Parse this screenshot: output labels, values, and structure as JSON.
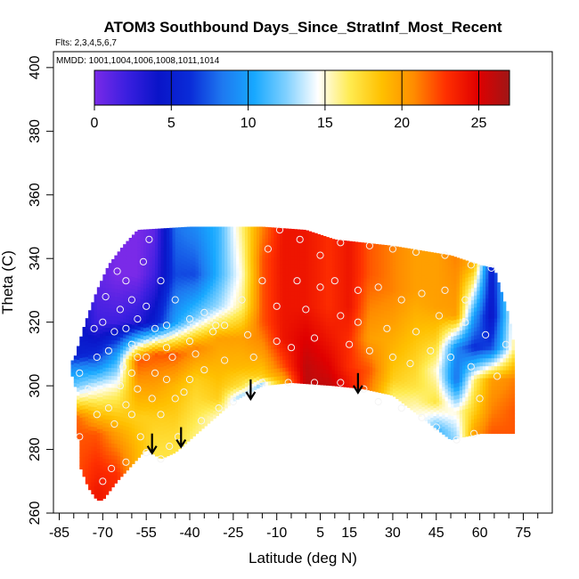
{
  "chart_data": {
    "type": "heatmap",
    "title": "ATOM3 Southbound Days_Since_StratInf_Most_Recent",
    "flights_note": "Flts: 2,3,4,5,6,7",
    "dates_note": "MMDD: 1001,1004,1006,1008,1011,1014",
    "xlabel": "Latitude (deg N)",
    "ylabel": "Theta (C)",
    "xlim": [
      -87,
      85
    ],
    "ylim": [
      260,
      405
    ],
    "x_ticks": [
      -85,
      -70,
      -55,
      -40,
      -25,
      -10,
      5,
      15,
      30,
      45,
      60,
      75
    ],
    "x_minor_ticks": [
      -80,
      -75,
      -65,
      -60,
      -50,
      -45,
      -35,
      -30,
      -20,
      -15,
      -5,
      0,
      10,
      20,
      25,
      35,
      40,
      50,
      55,
      65,
      70,
      80
    ],
    "y_ticks": [
      260,
      280,
      300,
      320,
      340,
      360,
      380,
      400
    ],
    "colorbar": {
      "min": 0,
      "max": 27,
      "ticks": [
        0,
        5,
        10,
        15,
        20,
        25
      ],
      "colors": [
        "#7a2ae8",
        "#3b1fe0",
        "#0a14c8",
        "#0a2cd8",
        "#1e78f0",
        "#17a8ff",
        "#7fd0ff",
        "#ffffff",
        "#ffeb50",
        "#ffc000",
        "#ff8c00",
        "#ff3000",
        "#e00000",
        "#a01616"
      ]
    },
    "domain": {
      "upper_boundary": [
        [
          -80,
          308
        ],
        [
          -76,
          320
        ],
        [
          -72,
          330
        ],
        [
          -68,
          338
        ],
        [
          -63,
          344
        ],
        [
          -58,
          349
        ],
        [
          -40,
          350
        ],
        [
          -15,
          350
        ],
        [
          0,
          349
        ],
        [
          10,
          346
        ],
        [
          30,
          344
        ],
        [
          50,
          341
        ],
        [
          60,
          338
        ],
        [
          65,
          337
        ],
        [
          70,
          322
        ],
        [
          72,
          312
        ],
        [
          72,
          300
        ],
        [
          72,
          285
        ]
      ],
      "lower_boundary": [
        [
          72,
          285
        ],
        [
          60,
          285
        ],
        [
          50,
          283
        ],
        [
          40,
          290
        ],
        [
          30,
          297
        ],
        [
          20,
          299
        ],
        [
          10,
          300
        ],
        [
          -5,
          301
        ],
        [
          -15,
          300
        ],
        [
          -25,
          295
        ],
        [
          -35,
          287
        ],
        [
          -45,
          279
        ],
        [
          -50,
          277
        ],
        [
          -55,
          280
        ],
        [
          -60,
          275
        ],
        [
          -65,
          270
        ],
        [
          -70,
          264
        ],
        [
          -72,
          264
        ],
        [
          -75,
          268
        ],
        [
          -78,
          275
        ],
        [
          -81,
          288
        ],
        [
          -81,
          298
        ],
        [
          -80,
          308
        ]
      ]
    },
    "field_columns": [
      {
        "lat": -80,
        "theta": [
          290,
          300,
          306,
          310
        ],
        "value": [
          22,
          12,
          9,
          5
        ]
      },
      {
        "lat": -72,
        "theta": [
          266,
          285,
          300,
          310,
          320,
          332
        ],
        "value": [
          24,
          22,
          14,
          6,
          2,
          1
        ]
      },
      {
        "lat": -65,
        "theta": [
          272,
          285,
          298,
          310,
          320,
          335,
          345
        ],
        "value": [
          23,
          20,
          16,
          10,
          2,
          0,
          0
        ]
      },
      {
        "lat": -58,
        "theta": [
          280,
          290,
          300,
          308,
          320,
          335,
          348
        ],
        "value": [
          19,
          18,
          20,
          22,
          3,
          0,
          0
        ]
      },
      {
        "lat": -52,
        "theta": [
          279,
          290,
          300,
          310,
          320,
          335,
          348
        ],
        "value": [
          17,
          18,
          20,
          22,
          5,
          2,
          1
        ]
      },
      {
        "lat": -45,
        "theta": [
          280,
          290,
          300,
          310,
          320,
          335,
          349
        ],
        "value": [
          17,
          18,
          19,
          22,
          10,
          7,
          8
        ]
      },
      {
        "lat": -38,
        "theta": [
          284,
          292,
          302,
          312,
          322,
          335,
          349
        ],
        "value": [
          16,
          17,
          18,
          21,
          12,
          7,
          9
        ]
      },
      {
        "lat": -30,
        "theta": [
          290,
          296,
          305,
          315,
          325,
          335,
          349
        ],
        "value": [
          15,
          18,
          19,
          20,
          13,
          11,
          11
        ]
      },
      {
        "lat": -22,
        "theta": [
          296,
          300,
          306,
          315,
          325,
          335,
          349
        ],
        "value": [
          12,
          17,
          19,
          20,
          16,
          15,
          16
        ]
      },
      {
        "lat": -15,
        "theta": [
          300,
          303,
          310,
          320,
          330,
          340,
          349
        ],
        "value": [
          12,
          18,
          20,
          22,
          22,
          22,
          21
        ]
      },
      {
        "lat": -8,
        "theta": [
          301,
          306,
          315,
          325,
          335,
          349
        ],
        "value": [
          19,
          22,
          24,
          24,
          24,
          24
        ]
      },
      {
        "lat": 0,
        "theta": [
          301,
          306,
          315,
          325,
          335,
          349
        ],
        "value": [
          26,
          26,
          25,
          24,
          24,
          24
        ]
      },
      {
        "lat": 8,
        "theta": [
          300,
          306,
          315,
          325,
          335,
          346
        ],
        "value": [
          26,
          25,
          24,
          23,
          23,
          23
        ]
      },
      {
        "lat": 15,
        "theta": [
          300,
          306,
          315,
          325,
          335,
          345
        ],
        "value": [
          24,
          23,
          23,
          24,
          24,
          24
        ]
      },
      {
        "lat": 22,
        "theta": [
          298,
          305,
          315,
          325,
          335,
          344
        ],
        "value": [
          21,
          22,
          20,
          21,
          22,
          22
        ]
      },
      {
        "lat": 30,
        "theta": [
          296,
          302,
          310,
          320,
          330,
          343
        ],
        "value": [
          16,
          18,
          19,
          20,
          21,
          21
        ]
      },
      {
        "lat": 38,
        "theta": [
          292,
          300,
          310,
          320,
          330,
          342
        ],
        "value": [
          15,
          17,
          18,
          19,
          20,
          20
        ]
      },
      {
        "lat": 45,
        "theta": [
          286,
          295,
          305,
          315,
          325,
          341
        ],
        "value": [
          11,
          17,
          15,
          18,
          20,
          20
        ]
      },
      {
        "lat": 52,
        "theta": [
          284,
          292,
          302,
          312,
          322,
          340
        ],
        "value": [
          13,
          15,
          8,
          9,
          20,
          21
        ]
      },
      {
        "lat": 58,
        "theta": [
          285,
          292,
          302,
          312,
          322,
          338
        ],
        "value": [
          20,
          18,
          16,
          6,
          10,
          19
        ]
      },
      {
        "lat": 64,
        "theta": [
          285,
          292,
          302,
          312,
          322,
          337
        ],
        "value": [
          22,
          21,
          20,
          7,
          4,
          5
        ]
      },
      {
        "lat": 72,
        "theta": [
          285,
          292,
          302,
          312,
          322
        ],
        "value": [
          22,
          22,
          21,
          16,
          16
        ]
      }
    ],
    "observations": [
      [
        -54,
        346
      ],
      [
        -65,
        336
      ],
      [
        -62,
        333
      ],
      [
        -56,
        339
      ],
      [
        -50,
        333
      ],
      [
        -45,
        327
      ],
      [
        -40,
        321
      ],
      [
        -35,
        323
      ],
      [
        -31,
        319
      ],
      [
        -28,
        319
      ],
      [
        -20,
        316
      ],
      [
        -48,
        319
      ],
      [
        -58,
        321
      ],
      [
        -64,
        324
      ],
      [
        -70,
        320
      ],
      [
        -66,
        317
      ],
      [
        -60,
        313
      ],
      [
        -55,
        309
      ],
      [
        -52,
        304
      ],
      [
        -58,
        299
      ],
      [
        -62,
        294
      ],
      [
        -68,
        293
      ],
      [
        -72,
        291
      ],
      [
        -78,
        284
      ],
      [
        -66,
        288
      ],
      [
        -60,
        291
      ],
      [
        -57,
        284
      ],
      [
        -55,
        279
      ],
      [
        -50,
        277
      ],
      [
        -47,
        281
      ],
      [
        -44,
        284
      ],
      [
        -36,
        289
      ],
      [
        -30,
        293
      ],
      [
        -25,
        295
      ],
      [
        -15,
        301
      ],
      [
        -6,
        301
      ],
      [
        3,
        301
      ],
      [
        12,
        301
      ],
      [
        20,
        299
      ],
      [
        25,
        295
      ],
      [
        33,
        293
      ],
      [
        40,
        290
      ],
      [
        45,
        287
      ],
      [
        52,
        283
      ],
      [
        58,
        285
      ],
      [
        -62,
        276
      ],
      [
        -67,
        274
      ],
      [
        -70,
        270
      ],
      [
        -63,
        306
      ],
      [
        -58,
        309
      ],
      [
        -48,
        312
      ],
      [
        -40,
        314
      ],
      [
        -32,
        317
      ],
      [
        -9,
        349
      ],
      [
        -2,
        346
      ],
      [
        5,
        341
      ],
      [
        12,
        345
      ],
      [
        22,
        344
      ],
      [
        30,
        343
      ],
      [
        38,
        342
      ],
      [
        48,
        341
      ],
      [
        57,
        338
      ],
      [
        64,
        337
      ],
      [
        -13,
        343
      ],
      [
        -3,
        333
      ],
      [
        5,
        331
      ],
      [
        10,
        333
      ],
      [
        18,
        330
      ],
      [
        25,
        331
      ],
      [
        33,
        327
      ],
      [
        40,
        329
      ],
      [
        48,
        330
      ],
      [
        55,
        327
      ],
      [
        -10,
        325
      ],
      [
        0,
        324
      ],
      [
        12,
        322
      ],
      [
        18,
        320
      ],
      [
        28,
        318
      ],
      [
        38,
        317
      ],
      [
        46,
        322
      ],
      [
        55,
        320
      ],
      [
        62,
        316
      ],
      [
        -5,
        312
      ],
      [
        3,
        315
      ],
      [
        -22,
        327
      ],
      [
        -15,
        333
      ],
      [
        -72,
        309
      ],
      [
        -78,
        304
      ],
      [
        -55,
        325
      ],
      [
        -52,
        318
      ],
      [
        -46,
        309
      ],
      [
        -38,
        310
      ],
      [
        69,
        313
      ],
      [
        66,
        303
      ],
      [
        60,
        296
      ],
      [
        -75,
        299
      ],
      [
        -68,
        311
      ],
      [
        -62,
        318
      ],
      [
        -53,
        296
      ],
      [
        -50,
        291
      ],
      [
        -45,
        296
      ],
      [
        -40,
        302
      ],
      [
        -35,
        305
      ],
      [
        -28,
        308
      ],
      [
        -18,
        309
      ],
      [
        -10,
        314
      ],
      [
        15,
        313
      ],
      [
        22,
        311
      ],
      [
        30,
        309
      ],
      [
        36,
        307
      ],
      [
        43,
        311
      ],
      [
        50,
        309
      ],
      [
        57,
        306
      ],
      [
        -60,
        327
      ],
      [
        -69,
        328
      ],
      [
        -73,
        318
      ],
      [
        -64,
        300
      ],
      [
        -48,
        302
      ],
      [
        -42,
        298
      ],
      [
        -60,
        304
      ]
    ],
    "arrows": [
      [
        -53,
        285
      ],
      [
        -43,
        287
      ],
      [
        -19,
        302
      ],
      [
        18,
        304
      ]
    ]
  }
}
